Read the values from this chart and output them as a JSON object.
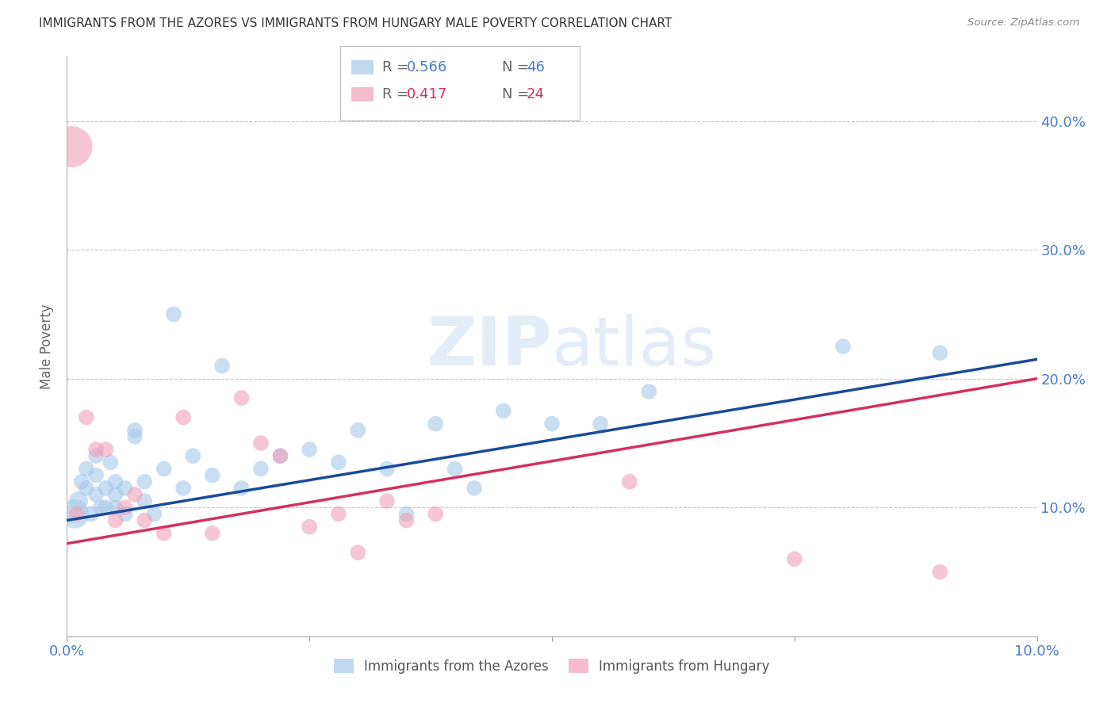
{
  "title": "IMMIGRANTS FROM THE AZORES VS IMMIGRANTS FROM HUNGARY MALE POVERTY CORRELATION CHART",
  "source": "Source: ZipAtlas.com",
  "ylabel": "Male Poverty",
  "xlim": [
    0.0,
    0.1
  ],
  "ylim": [
    0.0,
    0.45
  ],
  "yticks": [
    0.1,
    0.2,
    0.3,
    0.4
  ],
  "ytick_labels": [
    "10.0%",
    "20.0%",
    "30.0%",
    "40.0%"
  ],
  "background_color": "#ffffff",
  "grid_color": "#c8c8c8",
  "watermark": "ZIPatlas",
  "blue_color": "#a8c8e8",
  "pink_color": "#f0a0b8",
  "blue_line_color": "#1a4a9a",
  "pink_line_color": "#d43060",
  "axis_label_color": "#4a7cc7",
  "title_color": "#333333",
  "azores_x": [
    0.0008,
    0.0012,
    0.0015,
    0.002,
    0.002,
    0.0025,
    0.003,
    0.003,
    0.003,
    0.0035,
    0.004,
    0.004,
    0.0045,
    0.005,
    0.005,
    0.005,
    0.006,
    0.006,
    0.007,
    0.007,
    0.008,
    0.008,
    0.009,
    0.01,
    0.011,
    0.012,
    0.013,
    0.015,
    0.016,
    0.018,
    0.02,
    0.022,
    0.025,
    0.028,
    0.03,
    0.033,
    0.035,
    0.038,
    0.04,
    0.042,
    0.045,
    0.05,
    0.055,
    0.06,
    0.08,
    0.09
  ],
  "azores_y": [
    0.095,
    0.105,
    0.12,
    0.115,
    0.13,
    0.095,
    0.11,
    0.125,
    0.14,
    0.1,
    0.115,
    0.1,
    0.135,
    0.11,
    0.12,
    0.1,
    0.115,
    0.095,
    0.155,
    0.16,
    0.105,
    0.12,
    0.095,
    0.13,
    0.25,
    0.115,
    0.14,
    0.125,
    0.21,
    0.115,
    0.13,
    0.14,
    0.145,
    0.135,
    0.16,
    0.13,
    0.095,
    0.165,
    0.13,
    0.115,
    0.175,
    0.165,
    0.165,
    0.19,
    0.225,
    0.22
  ],
  "azores_size": [
    700,
    300,
    200,
    200,
    200,
    200,
    200,
    200,
    200,
    200,
    200,
    200,
    200,
    200,
    200,
    200,
    200,
    200,
    200,
    200,
    200,
    200,
    200,
    200,
    200,
    200,
    200,
    200,
    200,
    200,
    200,
    200,
    200,
    200,
    200,
    200,
    200,
    200,
    200,
    200,
    200,
    200,
    200,
    200,
    200,
    200
  ],
  "hungary_x": [
    0.0005,
    0.001,
    0.002,
    0.003,
    0.004,
    0.005,
    0.006,
    0.007,
    0.008,
    0.01,
    0.012,
    0.015,
    0.018,
    0.02,
    0.022,
    0.025,
    0.028,
    0.03,
    0.033,
    0.035,
    0.038,
    0.058,
    0.075,
    0.09
  ],
  "hungary_y": [
    0.38,
    0.095,
    0.17,
    0.145,
    0.145,
    0.09,
    0.1,
    0.11,
    0.09,
    0.08,
    0.17,
    0.08,
    0.185,
    0.15,
    0.14,
    0.085,
    0.095,
    0.065,
    0.105,
    0.09,
    0.095,
    0.12,
    0.06,
    0.05
  ],
  "hungary_size": [
    1400,
    200,
    200,
    200,
    200,
    200,
    200,
    200,
    200,
    200,
    200,
    200,
    200,
    200,
    200,
    200,
    200,
    200,
    200,
    200,
    200,
    200,
    200,
    200
  ],
  "blue_line_x": [
    0.0,
    0.1
  ],
  "blue_line_y": [
    0.09,
    0.215
  ],
  "pink_line_x": [
    0.0,
    0.1
  ],
  "pink_line_y": [
    0.072,
    0.2
  ]
}
